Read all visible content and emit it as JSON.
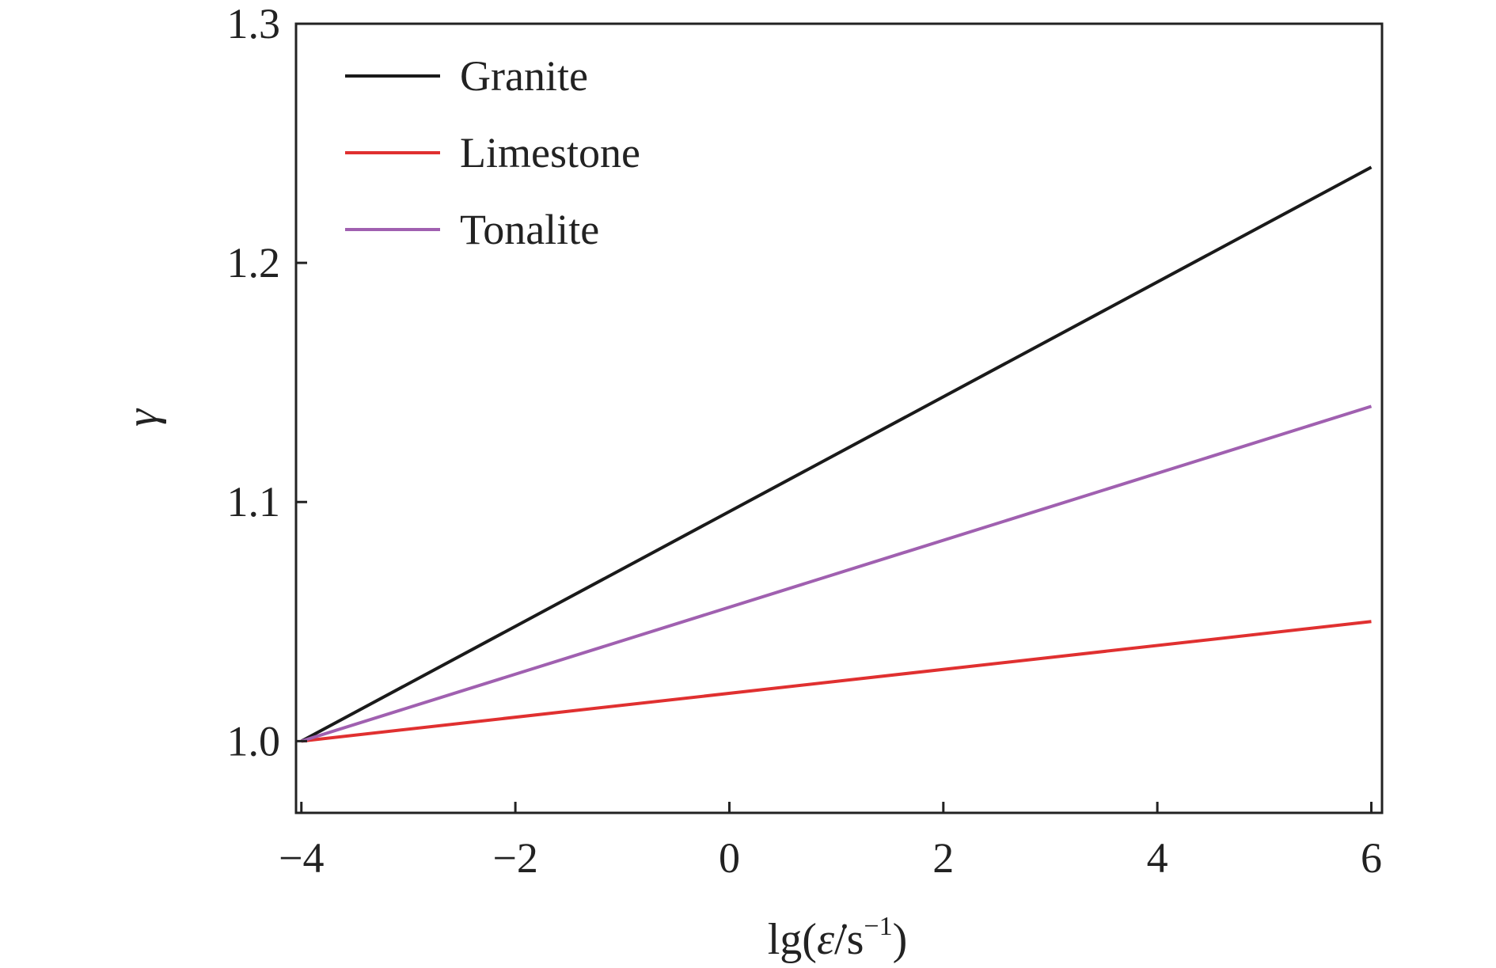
{
  "chart_data": {
    "type": "line",
    "title": "",
    "xlabel": "lg(ε̇/s⁻¹)",
    "xlabel_parts": {
      "prefix": "lg(",
      "symbol": "ε̇",
      "middle": "/s",
      "superscript": "−1",
      "suffix": ")"
    },
    "ylabel": "γ",
    "xlim": [
      -4.05,
      6.1
    ],
    "ylim": [
      0.97,
      1.3
    ],
    "xticks": [
      -4,
      -2,
      0,
      2,
      4,
      6
    ],
    "xtick_labels": [
      "−4",
      "−2",
      "0",
      "2",
      "4",
      "6"
    ],
    "yticks": [
      1.0,
      1.1,
      1.2,
      1.3
    ],
    "ytick_labels": [
      "1.0",
      "1.1",
      "1.2",
      "1.3"
    ],
    "grid": false,
    "legend_position": "top-left",
    "series": [
      {
        "name": "Granite",
        "color": "#1a1a1a",
        "x": [
          -4,
          6
        ],
        "y": [
          1.0,
          1.24
        ]
      },
      {
        "name": "Limestone",
        "color": "#e03030",
        "x": [
          -4,
          6
        ],
        "y": [
          1.0,
          1.05
        ]
      },
      {
        "name": "Tonalite",
        "color": "#a060b0",
        "x": [
          -4,
          6
        ],
        "y": [
          1.0,
          1.14
        ]
      }
    ]
  }
}
